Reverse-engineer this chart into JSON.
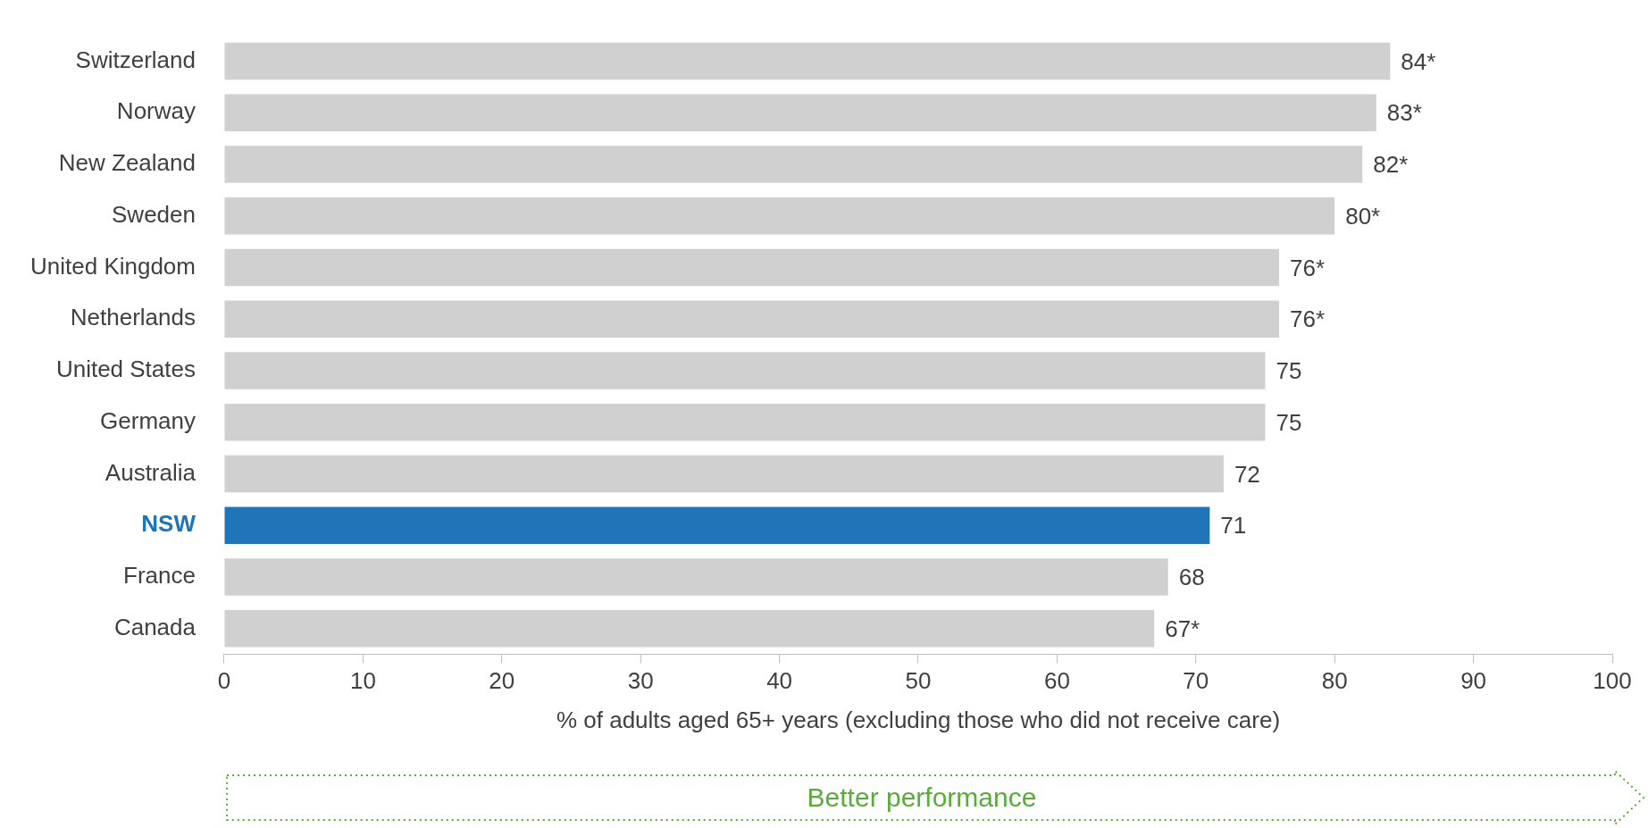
{
  "chart_data": {
    "type": "bar",
    "orientation": "horizontal",
    "categories": [
      "Switzerland",
      "Norway",
      "New Zealand",
      "Sweden",
      "United Kingdom",
      "Netherlands",
      "United States",
      "Germany",
      "Australia",
      "NSW",
      "France",
      "Canada"
    ],
    "values": [
      84,
      83,
      82,
      80,
      76,
      76,
      75,
      75,
      72,
      71,
      68,
      67
    ],
    "value_labels": [
      "84*",
      "83*",
      "82*",
      "80*",
      "76*",
      "76*",
      "75",
      "75",
      "72",
      "71",
      "68",
      "67*"
    ],
    "colors": [
      "#d0d0d0",
      "#d0d0d0",
      "#d0d0d0",
      "#d0d0d0",
      "#d0d0d0",
      "#d0d0d0",
      "#d0d0d0",
      "#d0d0d0",
      "#d0d0d0",
      "#1f75b8",
      "#d0d0d0",
      "#d0d0d0"
    ],
    "xlim": [
      0,
      100
    ],
    "xticks": [
      0,
      10,
      20,
      30,
      40,
      50,
      60,
      70,
      80,
      90,
      100
    ],
    "xlabel": "% of adults aged 65+ years (excluding those who did not receive care)",
    "annotations": [
      "Better performance"
    ],
    "grid": false,
    "legend": false
  }
}
